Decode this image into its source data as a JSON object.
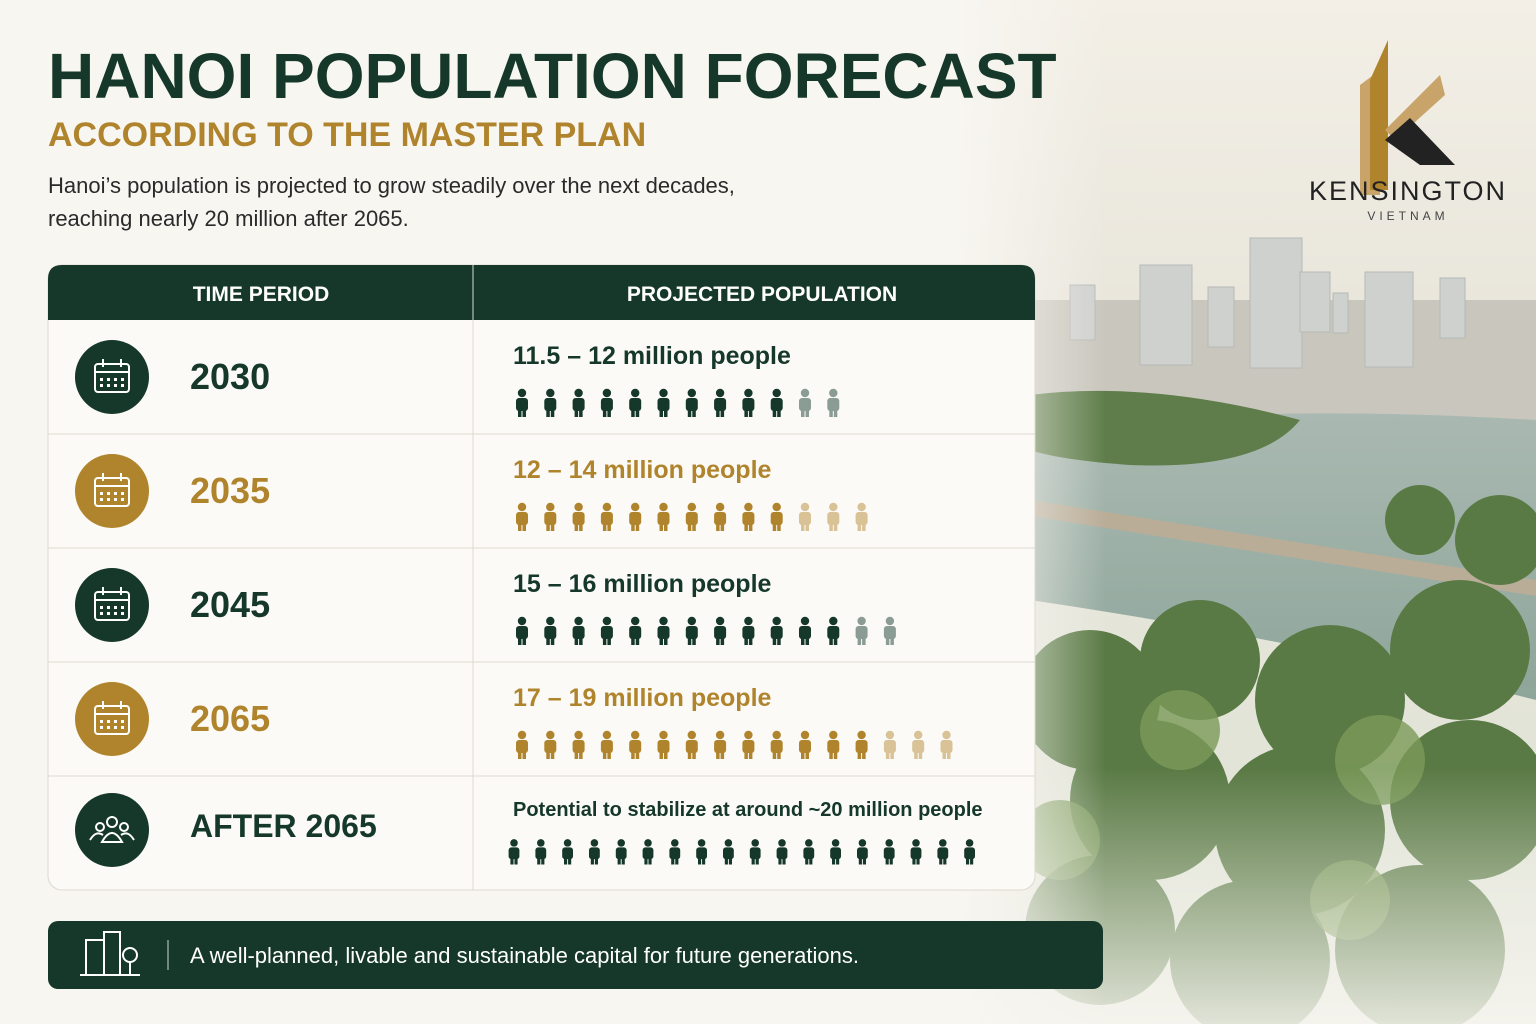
{
  "header": {
    "title": "HANOI POPULATION FORECAST",
    "subtitle": "ACCORDING TO THE MASTER PLAN",
    "description": [
      "Hanoi’s population is projected to grow steadily over the next decades,",
      "reaching nearly 20 million after 2065."
    ]
  },
  "logo": {
    "name": "KENSINGTON",
    "tagline": "VIETNAM"
  },
  "table": {
    "columns": [
      "TIME PERIOD",
      "PROJECTED POPULATION"
    ],
    "rows": [
      {
        "period": "2030",
        "population": "11.5 – 12 million people",
        "color": "#16382a",
        "icons": {
          "solid": 10,
          "light": 2
        }
      },
      {
        "period": "2035",
        "population": "12 – 14 million people",
        "color": "#b0842c",
        "icons": {
          "solid": 10,
          "light": 3
        }
      },
      {
        "period": "2045",
        "population": "15 – 16 million people",
        "color": "#16382a",
        "icons": {
          "solid": 12,
          "light": 2
        }
      },
      {
        "period": "2065",
        "population": "17 – 19 million people",
        "color": "#b0842c",
        "icons": {
          "solid": 13,
          "light": 3
        }
      },
      {
        "period": "AFTER 2065",
        "population": "Potential to stabilize at around ~20 million people",
        "color": "#16382a",
        "icons": {
          "solid": 18,
          "light": 0
        }
      }
    ]
  },
  "footer": {
    "text": "A well-planned, livable and sustainable capital for future generations."
  }
}
